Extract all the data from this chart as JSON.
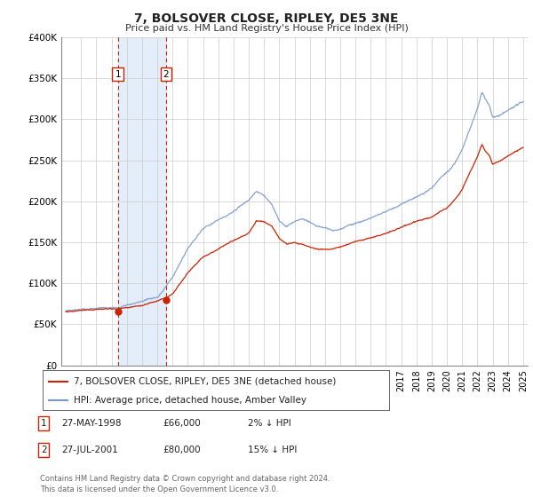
{
  "title": "7, BOLSOVER CLOSE, RIPLEY, DE5 3NE",
  "subtitle": "Price paid vs. HM Land Registry's House Price Index (HPI)",
  "ylim": [
    0,
    400000
  ],
  "yticks": [
    0,
    50000,
    100000,
    150000,
    200000,
    250000,
    300000,
    350000,
    400000
  ],
  "ytick_labels": [
    "£0",
    "£50K",
    "£100K",
    "£150K",
    "£200K",
    "£250K",
    "£300K",
    "£350K",
    "£400K"
  ],
  "hpi_color": "#7799cc",
  "price_color": "#cc2200",
  "shade_color": "#d8e8f8",
  "legend_entry1": "7, BOLSOVER CLOSE, RIPLEY, DE5 3NE (detached house)",
  "legend_entry2": "HPI: Average price, detached house, Amber Valley",
  "transactions": [
    {
      "date": 1998.41,
      "price": 66000,
      "label": "1"
    },
    {
      "date": 2001.57,
      "price": 80000,
      "label": "2"
    }
  ],
  "table_rows": [
    {
      "num": "1",
      "date": "27-MAY-1998",
      "price": "£66,000",
      "rel": "2% ↓ HPI"
    },
    {
      "num": "2",
      "date": "27-JUL-2001",
      "price": "£80,000",
      "rel": "15% ↓ HPI"
    }
  ],
  "footnote": "Contains HM Land Registry data © Crown copyright and database right 2024.\nThis data is licensed under the Open Government Licence v3.0.",
  "background_color": "#ffffff",
  "grid_color": "#cccccc",
  "hpi_keypoints": [
    [
      1995.0,
      63000
    ],
    [
      1996.0,
      65000
    ],
    [
      1997.0,
      67000
    ],
    [
      1998.0,
      68000
    ],
    [
      1998.41,
      67347
    ],
    [
      1999.0,
      70000
    ],
    [
      2000.0,
      74000
    ],
    [
      2001.0,
      80000
    ],
    [
      2001.57,
      94118
    ],
    [
      2002.0,
      105000
    ],
    [
      2003.0,
      140000
    ],
    [
      2004.0,
      165000
    ],
    [
      2005.0,
      175000
    ],
    [
      2006.0,
      185000
    ],
    [
      2007.0,
      200000
    ],
    [
      2007.5,
      210000
    ],
    [
      2008.0,
      205000
    ],
    [
      2008.5,
      195000
    ],
    [
      2009.0,
      175000
    ],
    [
      2009.5,
      168000
    ],
    [
      2010.0,
      175000
    ],
    [
      2010.5,
      178000
    ],
    [
      2011.0,
      175000
    ],
    [
      2011.5,
      170000
    ],
    [
      2012.0,
      168000
    ],
    [
      2012.5,
      165000
    ],
    [
      2013.0,
      168000
    ],
    [
      2013.5,
      172000
    ],
    [
      2014.0,
      175000
    ],
    [
      2015.0,
      182000
    ],
    [
      2016.0,
      190000
    ],
    [
      2017.0,
      200000
    ],
    [
      2018.0,
      210000
    ],
    [
      2018.5,
      215000
    ],
    [
      2019.0,
      220000
    ],
    [
      2019.5,
      230000
    ],
    [
      2020.0,
      238000
    ],
    [
      2020.5,
      248000
    ],
    [
      2021.0,
      265000
    ],
    [
      2021.5,
      290000
    ],
    [
      2022.0,
      315000
    ],
    [
      2022.3,
      335000
    ],
    [
      2022.5,
      328000
    ],
    [
      2022.8,
      318000
    ],
    [
      2023.0,
      305000
    ],
    [
      2023.5,
      308000
    ],
    [
      2024.0,
      315000
    ],
    [
      2024.5,
      320000
    ],
    [
      2025.0,
      325000
    ]
  ],
  "price_keypoints": [
    [
      1995.0,
      63000
    ],
    [
      1996.0,
      63500
    ],
    [
      1997.0,
      64500
    ],
    [
      1998.0,
      65500
    ],
    [
      1998.41,
      66000
    ],
    [
      1999.0,
      68000
    ],
    [
      2000.0,
      71000
    ],
    [
      2001.0,
      76000
    ],
    [
      2001.57,
      80000
    ],
    [
      2002.0,
      84000
    ],
    [
      2003.0,
      110000
    ],
    [
      2004.0,
      130000
    ],
    [
      2005.0,
      140000
    ],
    [
      2006.0,
      150000
    ],
    [
      2007.0,
      160000
    ],
    [
      2007.5,
      175000
    ],
    [
      2008.0,
      175000
    ],
    [
      2008.5,
      170000
    ],
    [
      2009.0,
      155000
    ],
    [
      2009.5,
      148000
    ],
    [
      2010.0,
      150000
    ],
    [
      2010.5,
      148000
    ],
    [
      2011.0,
      145000
    ],
    [
      2011.5,
      143000
    ],
    [
      2012.0,
      142000
    ],
    [
      2012.5,
      143000
    ],
    [
      2013.0,
      145000
    ],
    [
      2013.5,
      148000
    ],
    [
      2014.0,
      152000
    ],
    [
      2015.0,
      157000
    ],
    [
      2016.0,
      163000
    ],
    [
      2017.0,
      170000
    ],
    [
      2018.0,
      178000
    ],
    [
      2018.5,
      180000
    ],
    [
      2019.0,
      183000
    ],
    [
      2019.5,
      190000
    ],
    [
      2020.0,
      195000
    ],
    [
      2020.5,
      205000
    ],
    [
      2021.0,
      218000
    ],
    [
      2021.5,
      238000
    ],
    [
      2022.0,
      258000
    ],
    [
      2022.3,
      273000
    ],
    [
      2022.5,
      265000
    ],
    [
      2022.8,
      258000
    ],
    [
      2023.0,
      248000
    ],
    [
      2023.5,
      252000
    ],
    [
      2024.0,
      258000
    ],
    [
      2024.5,
      263000
    ],
    [
      2025.0,
      268000
    ]
  ]
}
